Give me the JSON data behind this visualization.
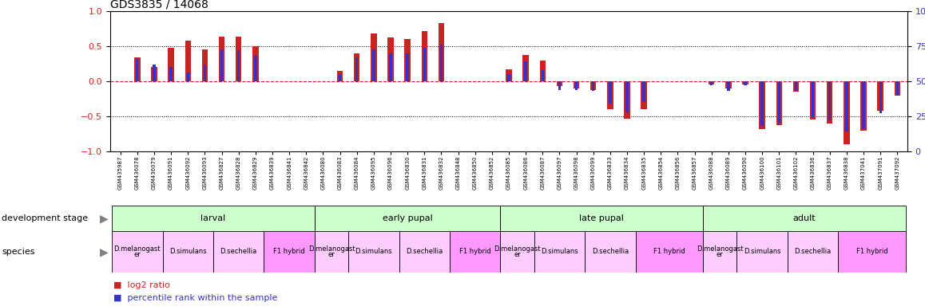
{
  "title": "GDS3835 / 14068",
  "samples": [
    "GSM435987",
    "GSM436078",
    "GSM436079",
    "GSM436091",
    "GSM436092",
    "GSM436093",
    "GSM436827",
    "GSM436828",
    "GSM436829",
    "GSM436839",
    "GSM436841",
    "GSM436842",
    "GSM436080",
    "GSM436083",
    "GSM436084",
    "GSM436095",
    "GSM436096",
    "GSM436830",
    "GSM436831",
    "GSM436832",
    "GSM436848",
    "GSM436850",
    "GSM436852",
    "GSM436085",
    "GSM436086",
    "GSM436087",
    "GSM436097",
    "GSM436098",
    "GSM436099",
    "GSM436833",
    "GSM436834",
    "GSM436835",
    "GSM436854",
    "GSM436856",
    "GSM436857",
    "GSM436088",
    "GSM436089",
    "GSM436090",
    "GSM436100",
    "GSM436101",
    "GSM436102",
    "GSM436836",
    "GSM436837",
    "GSM436838",
    "GSM437041",
    "GSM437091",
    "GSM437092"
  ],
  "log2_ratio": [
    0.0,
    0.34,
    0.2,
    0.48,
    0.58,
    0.45,
    0.64,
    0.64,
    0.5,
    0.0,
    0.0,
    0.0,
    0.0,
    0.15,
    0.4,
    0.68,
    0.62,
    0.6,
    0.72,
    0.83,
    0.0,
    0.0,
    0.0,
    0.17,
    0.37,
    0.3,
    -0.07,
    -0.1,
    -0.13,
    -0.4,
    -0.53,
    -0.4,
    0.0,
    0.0,
    0.0,
    -0.05,
    -0.1,
    -0.05,
    -0.68,
    -0.62,
    -0.15,
    -0.55,
    -0.6,
    -0.9,
    -0.7,
    -0.42,
    -0.2
  ],
  "percentile": [
    50,
    66,
    62,
    60,
    56,
    62,
    73,
    72,
    68,
    50,
    50,
    50,
    50,
    55,
    67,
    73,
    70,
    70,
    74,
    76,
    50,
    50,
    50,
    55,
    64,
    58,
    44,
    44,
    43,
    34,
    28,
    35,
    50,
    50,
    50,
    47,
    43,
    47,
    18,
    20,
    43,
    24,
    22,
    14,
    16,
    27,
    40
  ],
  "ylim_left": [
    -1,
    1
  ],
  "ylim_right": [
    0,
    100
  ],
  "dev_stages": [
    {
      "label": "larval",
      "start": 0,
      "end": 12,
      "color": "#ccffcc"
    },
    {
      "label": "early pupal",
      "start": 12,
      "end": 23,
      "color": "#ccffcc"
    },
    {
      "label": "late pupal",
      "start": 23,
      "end": 35,
      "color": "#ccffcc"
    },
    {
      "label": "adult",
      "start": 35,
      "end": 47,
      "color": "#ccffcc"
    }
  ],
  "species_groups": [
    {
      "label": "D.melanogast\ner",
      "start": 0,
      "end": 3,
      "color": "#ffccff"
    },
    {
      "label": "D.simulans",
      "start": 3,
      "end": 6,
      "color": "#ffccff"
    },
    {
      "label": "D.sechellia",
      "start": 6,
      "end": 9,
      "color": "#ffccff"
    },
    {
      "label": "F1 hybrid",
      "start": 9,
      "end": 12,
      "color": "#ff99ff"
    },
    {
      "label": "D.melanogast\ner",
      "start": 12,
      "end": 14,
      "color": "#ffccff"
    },
    {
      "label": "D.simulans",
      "start": 14,
      "end": 17,
      "color": "#ffccff"
    },
    {
      "label": "D.sechellia",
      "start": 17,
      "end": 20,
      "color": "#ffccff"
    },
    {
      "label": "F1 hybrid",
      "start": 20,
      "end": 23,
      "color": "#ff99ff"
    },
    {
      "label": "D.melanogast\ner",
      "start": 23,
      "end": 25,
      "color": "#ffccff"
    },
    {
      "label": "D.simulans",
      "start": 25,
      "end": 28,
      "color": "#ffccff"
    },
    {
      "label": "D.sechellia",
      "start": 28,
      "end": 31,
      "color": "#ffccff"
    },
    {
      "label": "F1 hybrid",
      "start": 31,
      "end": 35,
      "color": "#ff99ff"
    },
    {
      "label": "D.melanogast\ner",
      "start": 35,
      "end": 37,
      "color": "#ffccff"
    },
    {
      "label": "D.simulans",
      "start": 37,
      "end": 40,
      "color": "#ffccff"
    },
    {
      "label": "D.sechellia",
      "start": 40,
      "end": 43,
      "color": "#ffccff"
    },
    {
      "label": "F1 hybrid",
      "start": 43,
      "end": 47,
      "color": "#ff99ff"
    }
  ],
  "bar_color_red": "#cc2222",
  "bar_color_blue": "#3333cc",
  "zero_line_color": "#cc2222",
  "background_color": "#ffffff",
  "title_fontsize": 10,
  "bar_width": 0.35,
  "legend_red": "log2 ratio",
  "legend_blue": "percentile rank within the sample"
}
